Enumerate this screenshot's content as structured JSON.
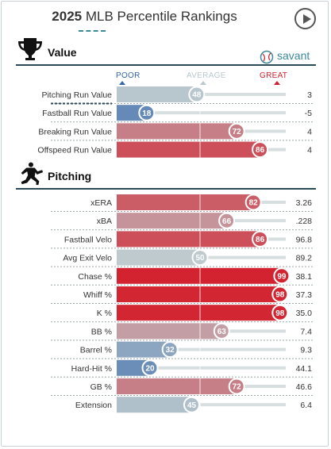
{
  "header": {
    "year": "2025",
    "title": "MLB Percentile Rankings"
  },
  "savant_label": "savant",
  "scale": {
    "poor": "POOR",
    "average": "AVERAGE",
    "great": "GREAT"
  },
  "colors": {
    "poor": "#3366aa",
    "average": "#b9c8cc",
    "great": "#d31f2d",
    "rule": "#2b4a55",
    "accent": "#3a8a9a"
  },
  "chart_data": {
    "type": "bar",
    "xlim": [
      0,
      100
    ],
    "sections": [
      {
        "title": "Value",
        "icon": "trophy-icon",
        "rows": [
          {
            "label": "Pitching Run Value",
            "percentile": 48,
            "value": "3"
          },
          {
            "label": "Fastball Run Value",
            "percentile": 18,
            "value": "-5"
          },
          {
            "label": "Breaking Run Value",
            "percentile": 72,
            "value": "4"
          },
          {
            "label": "Offspeed Run Value",
            "percentile": 86,
            "value": "4"
          }
        ]
      },
      {
        "title": "Pitching",
        "icon": "pitcher-icon",
        "rows": [
          {
            "label": "xERA",
            "percentile": 82,
            "value": "3.26"
          },
          {
            "label": "xBA",
            "percentile": 66,
            "value": ".228"
          },
          {
            "label": "Fastball Velo",
            "percentile": 86,
            "value": "96.8"
          },
          {
            "label": "Avg Exit Velo",
            "percentile": 50,
            "value": "89.2"
          },
          {
            "label": "Chase %",
            "percentile": 99,
            "value": "38.1"
          },
          {
            "label": "Whiff %",
            "percentile": 98,
            "value": "37.3"
          },
          {
            "label": "K %",
            "percentile": 98,
            "value": "35.0"
          },
          {
            "label": "BB %",
            "percentile": 63,
            "value": "7.4"
          },
          {
            "label": "Barrel %",
            "percentile": 32,
            "value": "9.3"
          },
          {
            "label": "Hard-Hit %",
            "percentile": 20,
            "value": "44.1"
          },
          {
            "label": "GB %",
            "percentile": 72,
            "value": "46.6"
          },
          {
            "label": "Extension",
            "percentile": 45,
            "value": "6.4"
          }
        ]
      }
    ]
  }
}
